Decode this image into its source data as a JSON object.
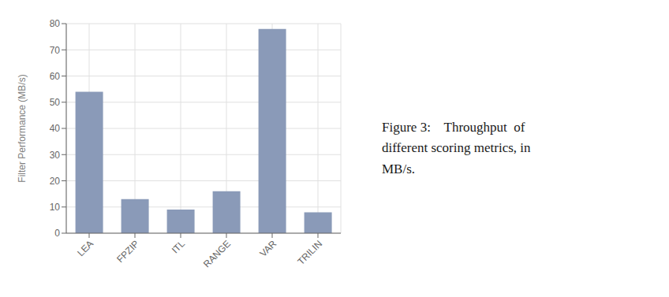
{
  "chart_data": {
    "type": "bar",
    "categories": [
      "LEA",
      "FPZIP",
      "ITL",
      "RANGE",
      "VAR",
      "TRILIN"
    ],
    "values": [
      54,
      13,
      9,
      16,
      78,
      8
    ],
    "color": "#8a9ab8",
    "ylabel": "Filter Performance (MB/s)",
    "ylim": [
      0,
      80
    ],
    "yticks": [
      0,
      10,
      20,
      30,
      40,
      50,
      60,
      70,
      80
    ],
    "grid": true,
    "annotations": [
      "Figure 3:    Throughput  of",
      "different scoring metrics, in",
      "MB/s."
    ]
  }
}
